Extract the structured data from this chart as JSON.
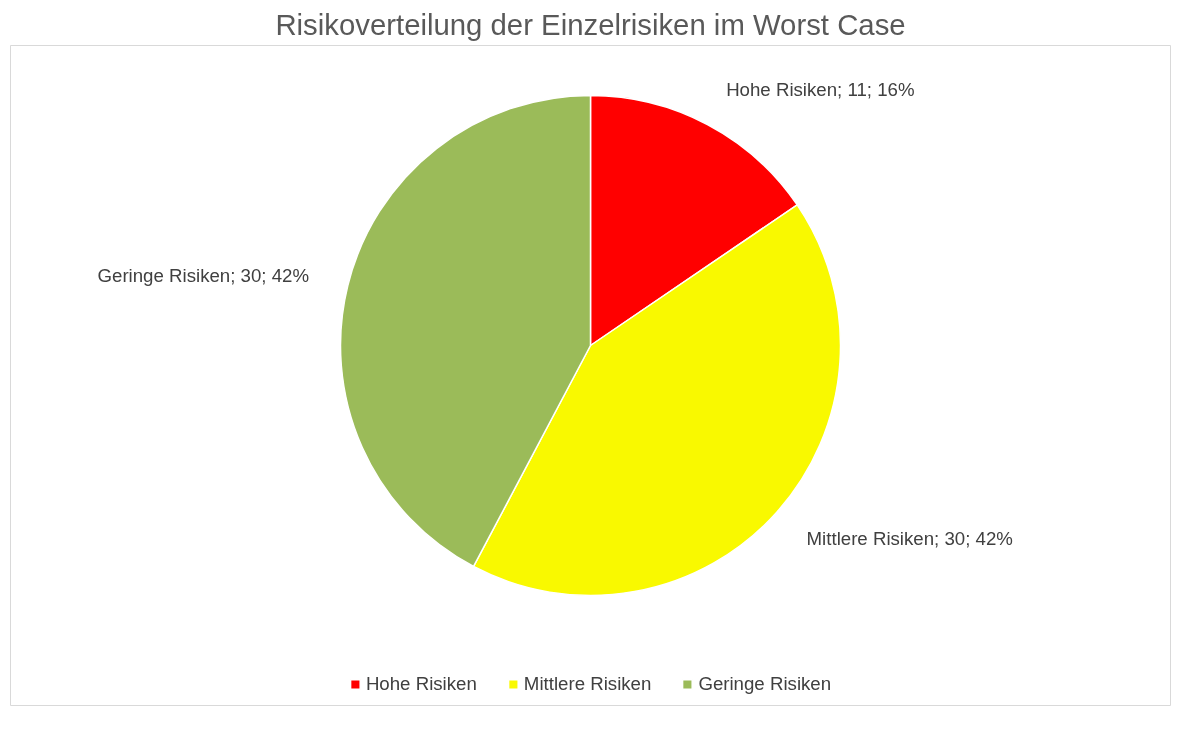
{
  "chart_data": {
    "type": "pie",
    "title": "Risikoverteilung der Einzelrisiken im Worst Case",
    "categories": [
      "Hohe Risiken",
      "Mittlere Risiken",
      "Geringe Risiken"
    ],
    "values": [
      11,
      30,
      30
    ],
    "colors": [
      "#ff0000",
      "#f9f900",
      "#9bbb59"
    ],
    "value_labels": [
      "Hohe Risiken; 11; 16%",
      "Mittlere Risiken; 30; 42%",
      "Geringe Risiken; 30; 42%"
    ],
    "legend": "bottom"
  }
}
